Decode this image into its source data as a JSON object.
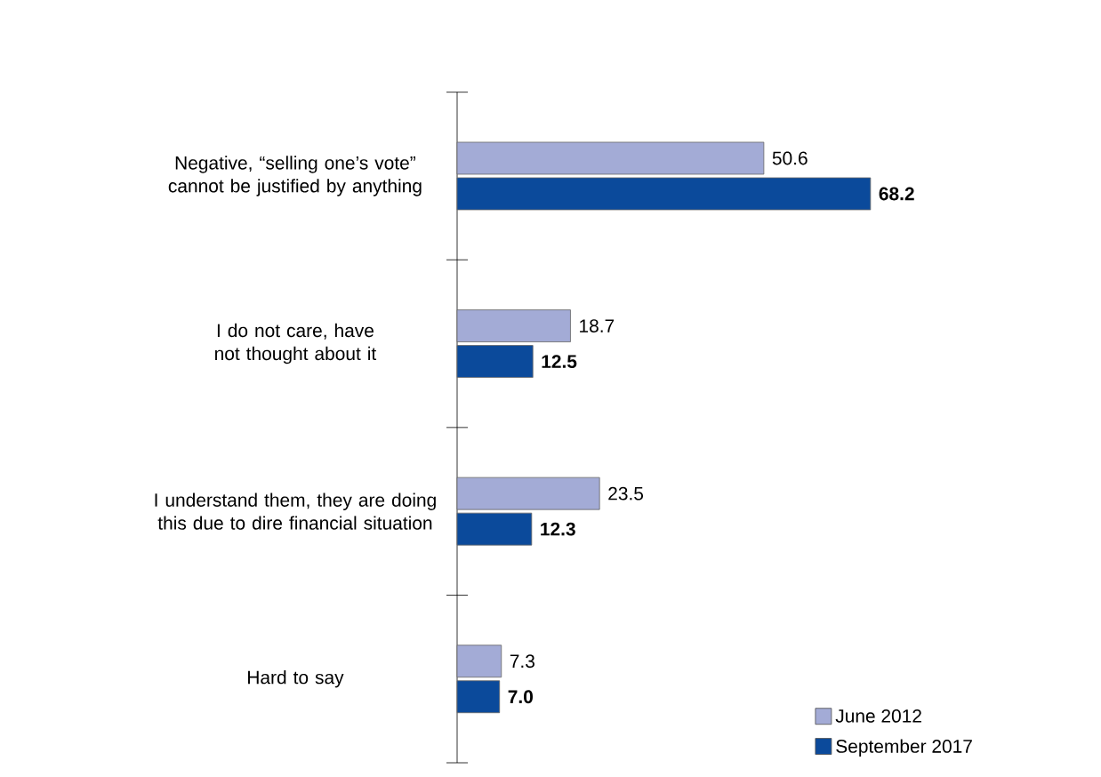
{
  "chart_data": {
    "type": "bar",
    "orientation": "horizontal",
    "legend": "bottom right",
    "categories": [
      "Negative, “selling one’s vote” cannot be justified by anything",
      "I do not care, have not thought about it",
      "I understand them, they are doing this due to dire financial situation",
      "Hard to say"
    ],
    "series": [
      {
        "name": "June 2012",
        "color": "#a3abd6",
        "values": [
          50.6,
          18.7,
          23.5,
          7.3
        ],
        "value_labels": [
          "50.6",
          "18.7",
          "23.5",
          "7.3"
        ]
      },
      {
        "name": "September 2017",
        "color": "#0b4a9b",
        "values": [
          68.2,
          12.5,
          12.3,
          7.0
        ],
        "value_labels": [
          "68.2",
          "12.5",
          "12.3",
          "7.0"
        ]
      }
    ]
  }
}
